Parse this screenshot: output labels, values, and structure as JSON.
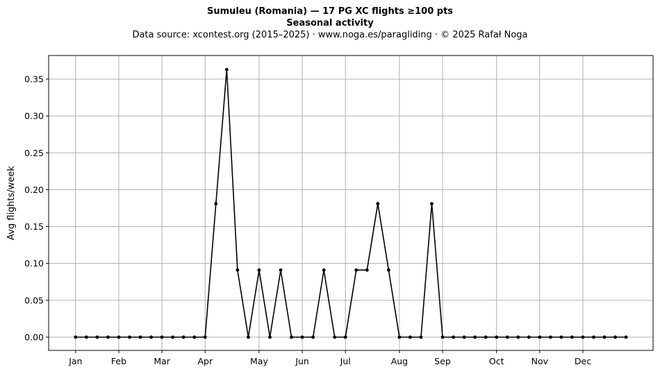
{
  "chart_data": {
    "type": "line",
    "title": "Sumuleu (Romania)  —  17 PG XC flights ≥100 pts",
    "subtitle": "Seasonal activity",
    "source_line": "Data source: xcontest.org (2015–2025)  ·  www.noga.es/paragliding  ·  © 2025 Rafał Noga",
    "xlabel": "",
    "ylabel": "Avg flights/week",
    "x_unit": "week",
    "xlim": [
      -2.5,
      53.5
    ],
    "ylim": [
      -0.018,
      0.382
    ],
    "y_ticks": [
      0.0,
      0.05,
      0.1,
      0.15,
      0.2,
      0.25,
      0.3,
      0.35
    ],
    "month_ticks": [
      {
        "label": "Jan",
        "week": 0
      },
      {
        "label": "Feb",
        "week": 4
      },
      {
        "label": "Mar",
        "week": 8
      },
      {
        "label": "Apr",
        "week": 12
      },
      {
        "label": "May",
        "week": 17
      },
      {
        "label": "Jun",
        "week": 21
      },
      {
        "label": "Jul",
        "week": 25
      },
      {
        "label": "Aug",
        "week": 30
      },
      {
        "label": "Sep",
        "week": 34
      },
      {
        "label": "Oct",
        "week": 39
      },
      {
        "label": "Nov",
        "week": 43
      },
      {
        "label": "Dec",
        "week": 47
      }
    ],
    "grid": true,
    "line_color": "#000000",
    "grid_color": "#b0b0b0",
    "series": [
      {
        "x": [
          0,
          1,
          2,
          3,
          4,
          5,
          6,
          7,
          8,
          9,
          10,
          11,
          12,
          13,
          14,
          15,
          16,
          17,
          18,
          19,
          20,
          21,
          22,
          23,
          24,
          25,
          26,
          27,
          28,
          29,
          30,
          31,
          32,
          33,
          34,
          35,
          36,
          37,
          38,
          39,
          40,
          41,
          42,
          43,
          44,
          45,
          46,
          47,
          48,
          49,
          50,
          51
        ],
        "values": [
          0,
          0,
          0,
          0,
          0,
          0,
          0,
          0,
          0,
          0,
          0,
          0,
          0,
          0.181,
          0.363,
          0.091,
          0,
          0.091,
          0,
          0.091,
          0,
          0,
          0,
          0.091,
          0,
          0,
          0.091,
          0.091,
          0.181,
          0.091,
          0,
          0,
          0,
          0.181,
          0,
          0,
          0,
          0,
          0,
          0,
          0,
          0,
          0,
          0,
          0,
          0,
          0,
          0,
          0,
          0,
          0,
          0
        ]
      }
    ]
  }
}
